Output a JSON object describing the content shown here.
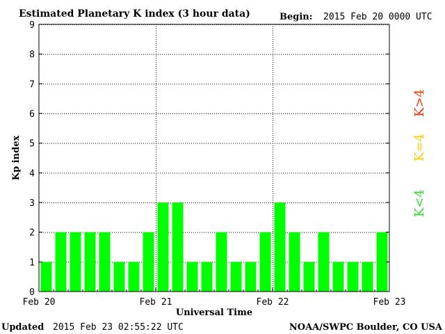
{
  "chart_data": {
    "type": "bar",
    "title": "Estimated Planetary K index (3 hour data)",
    "begin_label": "Begin:",
    "begin_value": "2015 Feb 20 0000 UTC",
    "ylabel": "Kp index",
    "xlabel": "Universal Time",
    "ylim": [
      0,
      9
    ],
    "yticks": [
      "0",
      "1",
      "2",
      "3",
      "4",
      "5",
      "6",
      "7",
      "8",
      "9"
    ],
    "xtick_labels": [
      "Feb 20",
      "Feb 21",
      "Feb 22",
      "Feb 23"
    ],
    "interval_hours": 3,
    "values": [
      1,
      2,
      2,
      2,
      2,
      1,
      1,
      2,
      3,
      3,
      1,
      1,
      2,
      1,
      1,
      2,
      3,
      2,
      1,
      2,
      1,
      1,
      1,
      2
    ],
    "bar_color": "#00ff00",
    "grid": "dotted",
    "legend": {
      "placement": "right",
      "items": [
        {
          "label": "K<4",
          "color": "#33dd33"
        },
        {
          "label": "K=4",
          "color": "#ffcc00"
        },
        {
          "label": "K>4",
          "color": "#ff3300"
        }
      ]
    }
  },
  "footer": {
    "updated_label": "Updated",
    "updated_value": "2015 Feb 23 02:55:22 UTC",
    "credit": "NOAA/SWPC Boulder, CO USA"
  }
}
